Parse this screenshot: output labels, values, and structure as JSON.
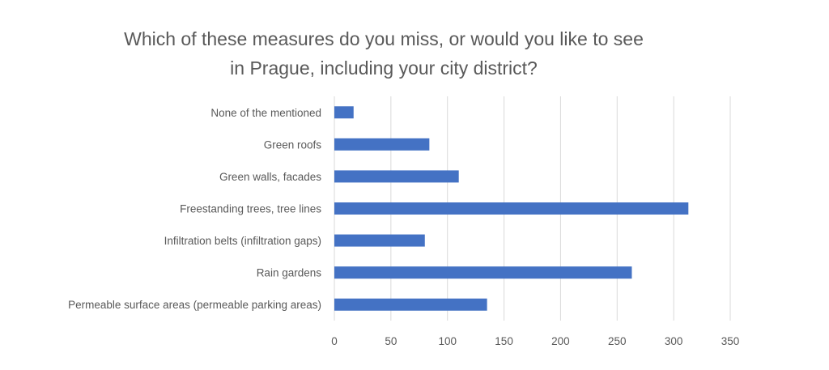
{
  "chart_data": {
    "type": "bar",
    "orientation": "horizontal",
    "title": [
      "Which of these measures do you miss, or would you like to see",
      "in Prague, including your city district?"
    ],
    "categories": [
      "None of the mentioned",
      "Green roofs",
      "Green walls, facades",
      "Freestanding trees, tree lines",
      "Infiltration belts (infiltration gaps)",
      "Rain gardens",
      "Permeable surface areas (permeable parking areas)"
    ],
    "values": [
      17,
      84,
      110,
      313,
      80,
      263,
      135
    ],
    "xticks": [
      0,
      50,
      100,
      150,
      200,
      250,
      300,
      350
    ],
    "xlim": [
      0,
      350
    ],
    "grid": "vertical",
    "legend": "none",
    "bar_color": "#4472C4",
    "grid_color": "#D9D9D9"
  }
}
